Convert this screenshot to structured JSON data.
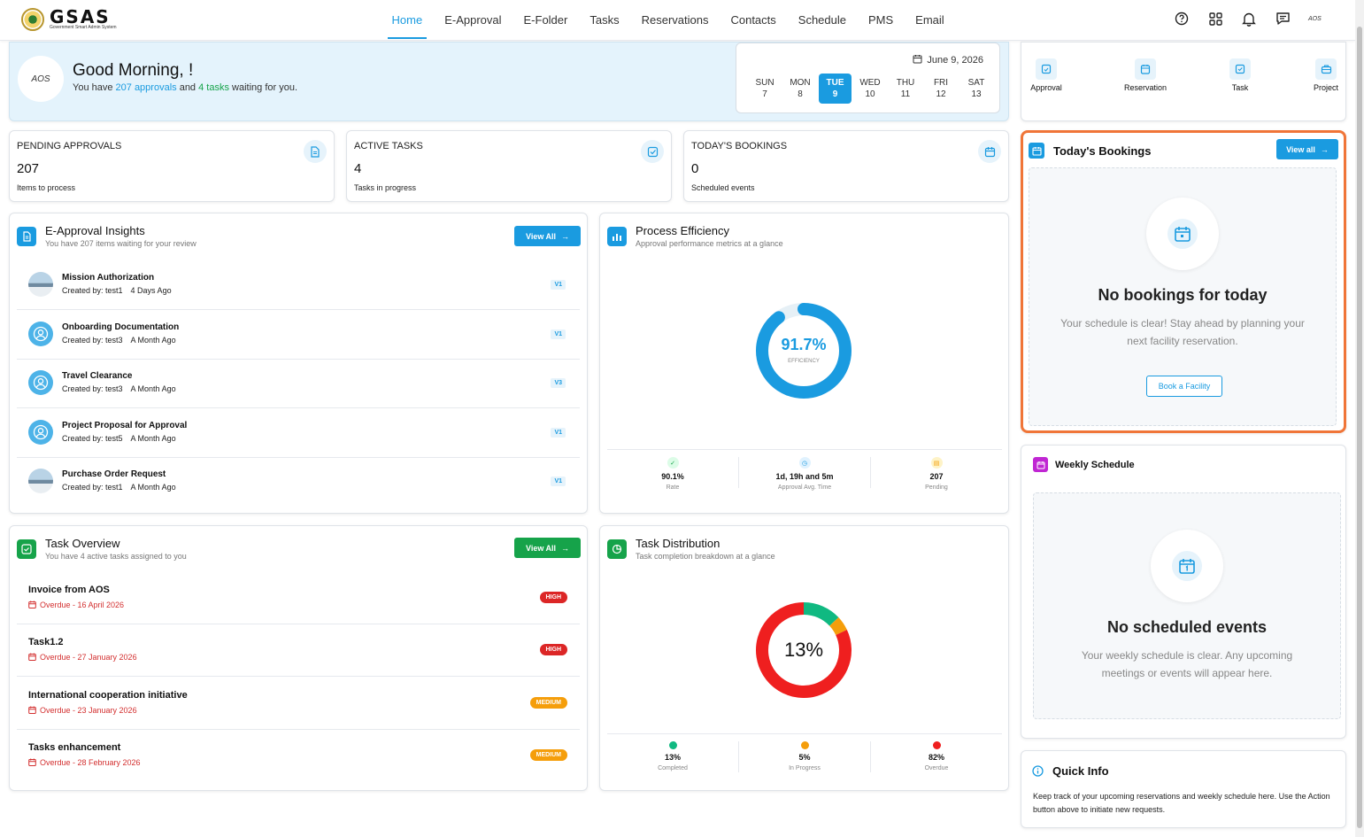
{
  "app": {
    "logo_text": "GSAS",
    "logo_subtitle": "Government Smart Admin System",
    "nav": [
      "Home",
      "E-Approval",
      "E-Folder",
      "Tasks",
      "Reservations",
      "Contacts",
      "Schedule",
      "PMS",
      "Email"
    ],
    "active_nav": "Home",
    "avatar_text": "AOS"
  },
  "welcome": {
    "avatar_text": "AOS",
    "greeting": "Good Morning, !",
    "sub_prefix": "You have ",
    "approvals": "207 approvals",
    "sub_mid": " and ",
    "tasks": "4 tasks",
    "sub_suffix": " waiting for you.",
    "date": "June 9, 2026",
    "days": [
      {
        "name": "SUN",
        "num": "7"
      },
      {
        "name": "MON",
        "num": "8"
      },
      {
        "name": "TUE",
        "num": "9"
      },
      {
        "name": "WED",
        "num": "10"
      },
      {
        "name": "THU",
        "num": "11"
      },
      {
        "name": "FRI",
        "num": "12"
      },
      {
        "name": "SAT",
        "num": "13"
      }
    ],
    "active_day": "TUE"
  },
  "stats": [
    {
      "label": "PENDING APPROVALS",
      "value": "207",
      "sub": "Items to process"
    },
    {
      "label": "ACTIVE TASKS",
      "value": "4",
      "sub": "Tasks in progress"
    },
    {
      "label": "TODAY'S BOOKINGS",
      "value": "0",
      "sub": "Scheduled events"
    }
  ],
  "approvals": {
    "title": "E-Approval Insights",
    "subtitle": "You have 207 items waiting for your review",
    "button": "View All",
    "items": [
      {
        "title": "Mission Authorization",
        "created": "Created by: test1",
        "time": "4 Days Ago",
        "version": "V1",
        "avatar": "photo"
      },
      {
        "title": "Onboarding Documentation",
        "created": "Created by: test3",
        "time": "A Month Ago",
        "version": "V1",
        "avatar": "user"
      },
      {
        "title": "Travel Clearance",
        "created": "Created by: test3",
        "time": "A Month Ago",
        "version": "V3",
        "avatar": "user"
      },
      {
        "title": "Project Proposal for Approval",
        "created": "Created by: test5",
        "time": "A Month Ago",
        "version": "V1",
        "avatar": "user"
      },
      {
        "title": "Purchase Order Request",
        "created": "Created by: test1",
        "time": "A Month Ago",
        "version": "V1",
        "avatar": "photo"
      }
    ]
  },
  "efficiency": {
    "title": "Process Efficiency",
    "subtitle": "Approval performance metrics at a glance",
    "value": "91.7%",
    "value_num": 91.7,
    "value_label": "EFFICIENCY",
    "metrics": [
      {
        "value": "90.1%",
        "label": "Rate"
      },
      {
        "value": "1d, 19h and 5m",
        "label": "Approval Avg. Time"
      },
      {
        "value": "207",
        "label": "Pending"
      }
    ]
  },
  "tasks": {
    "title": "Task Overview",
    "subtitle": "You have 4 active tasks assigned to you",
    "button": "View All",
    "items": [
      {
        "title": "Invoice from AOS",
        "due": "Overdue - 16 April 2026",
        "priority": "HIGH"
      },
      {
        "title": "Task1.2",
        "due": "Overdue - 27 January 2026",
        "priority": "HIGH"
      },
      {
        "title": "International cooperation initiative",
        "due": "Overdue - 23 January 2026",
        "priority": "MEDIUM"
      },
      {
        "title": "Tasks enhancement",
        "due": "Overdue - 28 February 2026",
        "priority": "MEDIUM"
      }
    ]
  },
  "distribution": {
    "title": "Task Distribution",
    "subtitle": "Task completion breakdown at a glance",
    "center": "13%",
    "colors": {
      "completed": "#10b981",
      "in_progress": "#f59e0b",
      "overdue": "#ef1f1f"
    },
    "chart_data": {
      "type": "pie",
      "categories": [
        "Completed",
        "In Progress",
        "Overdue"
      ],
      "values": [
        13,
        5,
        82
      ]
    },
    "legend": [
      {
        "value": "13%",
        "label": "Completed"
      },
      {
        "value": "5%",
        "label": "In Progress"
      },
      {
        "value": "82%",
        "label": "Overdue"
      }
    ]
  },
  "quick_actions": [
    "Approval",
    "Reservation",
    "Task",
    "Project"
  ],
  "bookings": {
    "title": "Today's Bookings",
    "button": "View all",
    "empty_title": "No bookings for today",
    "empty_text": "Your schedule is clear! Stay ahead by planning your next facility reservation.",
    "action": "Book a Facility"
  },
  "weekly": {
    "title": "Weekly Schedule",
    "empty_title": "No scheduled events",
    "empty_text": "Your weekly schedule is clear. Any upcoming meetings or events will appear here."
  },
  "quick_info": {
    "title": "Quick Info",
    "text": "Keep track of your upcoming reservations and weekly schedule here. Use the Action button above to initiate new requests."
  }
}
